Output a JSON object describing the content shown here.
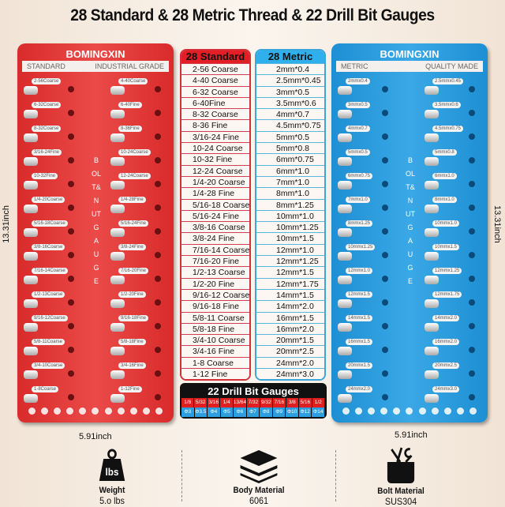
{
  "title": "28 Standard & 28 Metric Thread & 22 Drill Bit Gauges",
  "left_panel": {
    "brand": "BOMINGXIN",
    "label_left": "STANDARD",
    "label_right": "INDUSTRIAL GRADE",
    "vertical_text": "BOLT&NUTGAUGE",
    "col1": [
      "2-56Coarse",
      "6-32Coarse",
      "8-32Coarse",
      "3/16-24Fine",
      "10-32Fine",
      "1/4-20Coarse",
      "5/16-18Coarse",
      "3/8-16Coarse",
      "7/16-14Coarse",
      "1/2-13Coarse",
      "9/16-12Coarse",
      "5/8-11Coarse",
      "3/4-10Coarse",
      "1-8Coarse"
    ],
    "col2": [
      "4-40Coarse",
      "6-40Fine",
      "8-36Fine",
      "10-24Coarse",
      "12-24Coarse",
      "1/4-28Fine",
      "5/16-24Fine",
      "3/8-24Fine",
      "7/16-20Fine",
      "1/2-20Fine",
      "9/16-18Fine",
      "5/8-18Fine",
      "3/4-16Fine",
      "1-12Fine"
    ],
    "color": "#e23b3b"
  },
  "right_panel": {
    "brand": "BOMINGXIN",
    "label_left": "METRIC",
    "label_right": "QUALITY MADE",
    "vertical_text": "BOLT&NUTGAUGE",
    "col1": [
      "2mmx0.4",
      "3mmx0.5",
      "4mmx0.7",
      "5mmx0.5",
      "6mmx0.75",
      "7mmx1.0",
      "8mmx1.25",
      "10mmx1.25",
      "12mmx1.0",
      "12mmx1.5",
      "14mmx1.5",
      "16mmx1.5",
      "20mmx1.5",
      "24mmx2.0"
    ],
    "col2": [
      "2.5mmx0.45",
      "3.5mmx0.6",
      "4.5mmx0.75",
      "5mmx0.8",
      "6mmx1.0",
      "8mmx1.0",
      "10mmx1.0",
      "10mmx1.5",
      "12mmx1.25",
      "12mmx1.75",
      "14mmx2.0",
      "16mmx2.0",
      "20mmx2.5",
      "24mmx3.0"
    ],
    "color": "#2f9bd8"
  },
  "standard_table": {
    "header": "28 Standard",
    "rows": [
      "2-56 Coarse",
      "4-40 Coarse",
      "6-32 Coarse",
      "6-40Fine",
      "8-32 Coarse",
      "8-36 Fine",
      "3/16-24 Fine",
      "10-24 Coarse",
      "10-32 Fine",
      "12-24 Coarse",
      "1/4-20 Coarse",
      "1/4-28 Fine",
      "5/16-18 Coarse",
      "5/16-24 Fine",
      "3/8-16 Coarse",
      "3/8-24 Fine",
      "7/16-14 Coarse",
      "7/16-20 Fine",
      "1/2-13 Coarse",
      "1/2-20 Fine",
      "9/16-12 Coarse",
      "9/16-18 Fine",
      "5/8-11 Coarse",
      "5/8-18 Fine",
      "3/4-10 Coarse",
      "3/4-16 Fine",
      "1-8 Coarse",
      "1-12 Fine"
    ]
  },
  "metric_table": {
    "header": "28 Metric",
    "rows": [
      "2mm*0.4",
      "2.5mm*0.45",
      "3mm*0.5",
      "3.5mm*0.6",
      "4mm*0.7",
      "4.5mm*0.75",
      "5mm*0.5",
      "5mm*0.8",
      "6mm*0.75",
      "6mm*1.0",
      "7mm*1.0",
      "8mm*1.0",
      "8mm*1.25",
      "10mm*1.0",
      "10mm*1.25",
      "10mm*1.5",
      "12mm*1.0",
      "12mm*1.25",
      "12mm*1.5",
      "12mm*1.75",
      "14mm*1.5",
      "14mm*2.0",
      "16mm*1.5",
      "16mm*2.0",
      "20mm*1.5",
      "20mm*2.5",
      "24mm*2.0",
      "24mm*3.0"
    ]
  },
  "drill": {
    "header": "22 Drill Bit Gauges",
    "imperial": [
      "1/8",
      "5/32",
      "3/16",
      "1/4",
      "13/64",
      "7/32",
      "9/32",
      "7/16",
      "3/8",
      "5/16",
      "1/2"
    ],
    "metric": [
      "Φ3",
      "Φ3.5",
      "Φ4",
      "Φ5",
      "Φ6",
      "Φ7",
      "Φ8",
      "Φ9",
      "Φ10",
      "Φ12",
      "Φ14"
    ]
  },
  "dimensions": {
    "height": "13.31inch",
    "width": "5.91inch"
  },
  "features": [
    {
      "icon": "weight-icon",
      "icon_text": "lbs",
      "label": "Weight",
      "value": "5.o lbs"
    },
    {
      "icon": "layers-icon",
      "label": "Body Material",
      "value": "6061"
    },
    {
      "icon": "toolbox-icon",
      "label": "Bolt Material",
      "value": "SUS304"
    }
  ]
}
